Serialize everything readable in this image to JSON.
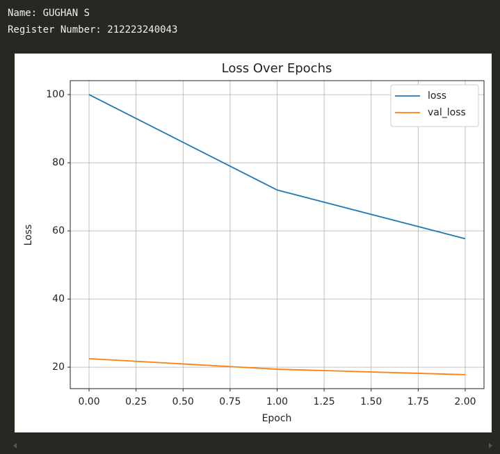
{
  "output": {
    "lines": [
      "Name: GUGHAN S",
      "Register Number: 212223240043"
    ]
  },
  "chart_data": {
    "type": "line",
    "title": "Loss Over Epochs",
    "xlabel": "Epoch",
    "ylabel": "Loss",
    "x": [
      0,
      1,
      2
    ],
    "series": [
      {
        "name": "loss",
        "color": "#1f77b4",
        "values": [
          100.0,
          72.0,
          57.7
        ]
      },
      {
        "name": "val_loss",
        "color": "#ff7f0e",
        "values": [
          22.5,
          19.4,
          17.8
        ]
      }
    ],
    "xlim": [
      -0.1,
      2.1
    ],
    "xticks": [
      {
        "value": 0,
        "label": "0.00"
      },
      {
        "value": 0.25,
        "label": "0.25"
      },
      {
        "value": 0.5,
        "label": "0.50"
      },
      {
        "value": 0.75,
        "label": "0.75"
      },
      {
        "value": 1,
        "label": "1.00"
      },
      {
        "value": 1.25,
        "label": "1.25"
      },
      {
        "value": 1.5,
        "label": "1.50"
      },
      {
        "value": 1.75,
        "label": "1.75"
      },
      {
        "value": 2,
        "label": "2.00"
      }
    ],
    "ylim": [
      13.7,
      104.1
    ],
    "yticks": [
      20,
      40,
      60,
      80,
      100
    ],
    "grid": true,
    "legend": "upper-right"
  }
}
